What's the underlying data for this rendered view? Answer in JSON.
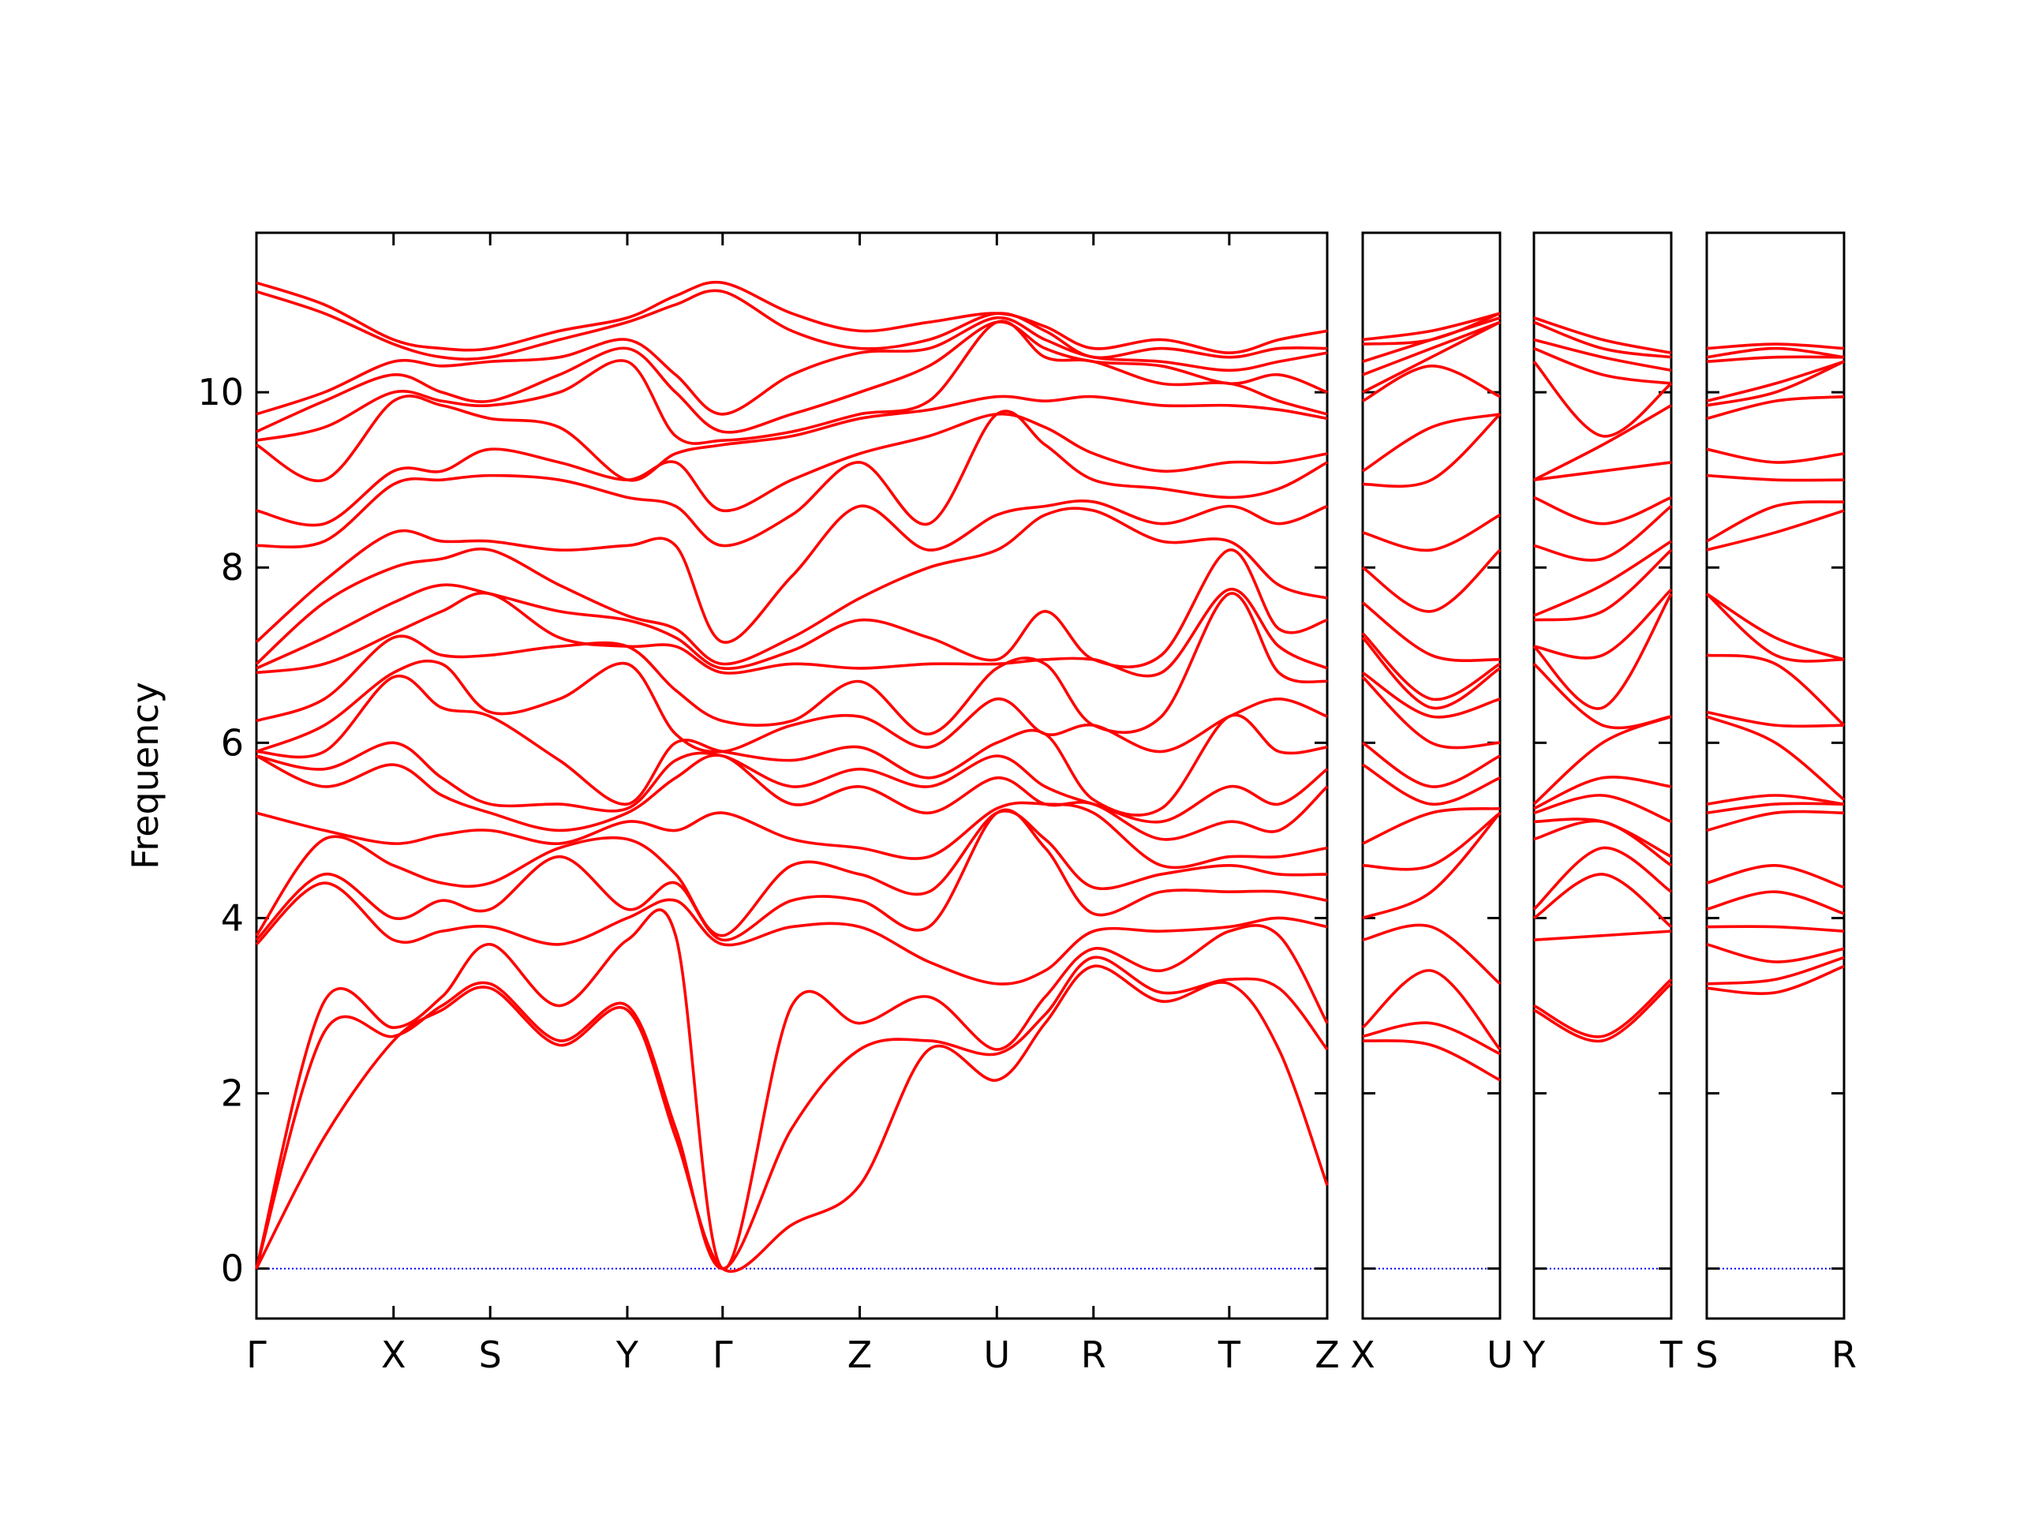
{
  "chart_data": [
    {
      "type": "line",
      "ylabel": "Frequency",
      "color": "#ff0000",
      "zero_line_color": "#0000ff",
      "ylim": [
        -0.57,
        11.82
      ],
      "yticks": [
        0,
        2,
        4,
        6,
        8,
        10
      ],
      "xlim": [
        0,
        8.2
      ],
      "xticks": [
        {
          "value": 0,
          "label": "Γ"
        },
        {
          "value": 1.05,
          "label": "X"
        },
        {
          "value": 1.79,
          "label": "S"
        },
        {
          "value": 2.84,
          "label": "Y"
        },
        {
          "value": 3.57,
          "label": "Γ"
        },
        {
          "value": 4.62,
          "label": "Z"
        },
        {
          "value": 5.67,
          "label": "U"
        },
        {
          "value": 6.41,
          "label": "R"
        },
        {
          "value": 7.45,
          "label": "T"
        },
        {
          "value": 8.2,
          "label": "Z"
        }
      ],
      "x": [
        0,
        0.52,
        1.05,
        1.42,
        1.79,
        2.32,
        2.84,
        3.21,
        3.57,
        4.1,
        4.62,
        5.15,
        5.67,
        6.04,
        6.41,
        6.93,
        7.45,
        7.83,
        8.2
      ],
      "series": [
        {
          "values": [
            0,
            1.5,
            2.6,
            2.95,
            3.2,
            2.55,
            2.95,
            1.5,
            0,
            0.5,
            0.95,
            2.5,
            2.15,
            2.8,
            3.45,
            3.05,
            3.25,
            2.5,
            0.95
          ]
        },
        {
          "values": [
            0,
            2.7,
            2.65,
            3.0,
            3.25,
            2.6,
            3.0,
            1.6,
            0,
            1.6,
            2.5,
            2.6,
            2.45,
            2.9,
            3.55,
            3.15,
            3.3,
            3.2,
            2.5
          ]
        },
        {
          "values": [
            0,
            3.05,
            2.75,
            3.1,
            3.7,
            3.0,
            3.75,
            3.8,
            0,
            3.0,
            2.8,
            3.1,
            2.5,
            3.1,
            3.65,
            3.4,
            3.85,
            3.8,
            2.8
          ]
        },
        {
          "values": [
            3.7,
            4.4,
            3.75,
            3.85,
            3.9,
            3.7,
            4.0,
            4.2,
            3.7,
            3.9,
            3.9,
            3.5,
            3.25,
            3.4,
            3.85,
            3.85,
            3.9,
            4.0,
            3.9
          ]
        },
        {
          "values": [
            3.75,
            4.5,
            4.0,
            4.2,
            4.1,
            4.7,
            4.1,
            4.4,
            3.75,
            4.2,
            4.2,
            3.9,
            5.2,
            4.8,
            4.05,
            4.3,
            4.3,
            4.3,
            4.2
          ]
        },
        {
          "values": [
            3.8,
            4.9,
            4.6,
            4.4,
            4.4,
            4.8,
            4.9,
            4.5,
            3.8,
            4.6,
            4.5,
            4.3,
            5.2,
            4.9,
            4.35,
            4.5,
            4.6,
            4.5,
            4.5
          ]
        },
        {
          "values": [
            5.2,
            5.0,
            4.85,
            4.95,
            5.0,
            4.85,
            5.1,
            5.0,
            5.2,
            4.9,
            4.8,
            4.7,
            5.25,
            5.3,
            5.2,
            4.6,
            4.7,
            4.7,
            4.8
          ]
        },
        {
          "values": [
            5.85,
            5.5,
            5.75,
            5.4,
            5.2,
            5.0,
            5.2,
            5.6,
            5.85,
            5.3,
            5.5,
            5.2,
            5.6,
            5.3,
            5.3,
            4.9,
            5.1,
            5.0,
            5.5
          ]
        },
        {
          "values": [
            5.85,
            5.7,
            6.0,
            5.6,
            5.3,
            5.3,
            5.25,
            5.8,
            5.85,
            5.5,
            5.7,
            5.5,
            5.85,
            5.5,
            5.3,
            5.1,
            5.5,
            5.3,
            5.7
          ]
        },
        {
          "values": [
            5.9,
            5.9,
            6.75,
            6.4,
            6.3,
            5.8,
            5.3,
            6.0,
            5.9,
            5.8,
            5.95,
            5.6,
            6.0,
            6.1,
            5.35,
            5.25,
            6.3,
            5.9,
            5.95
          ]
        },
        {
          "values": [
            5.9,
            6.2,
            6.8,
            6.9,
            6.35,
            6.5,
            6.9,
            6.1,
            5.9,
            6.2,
            6.3,
            5.95,
            6.5,
            6.1,
            6.2,
            5.9,
            6.3,
            6.5,
            6.3
          ]
        },
        {
          "values": [
            6.25,
            6.5,
            7.2,
            7.0,
            7.0,
            7.1,
            7.1,
            6.6,
            6.25,
            6.25,
            6.7,
            6.1,
            6.85,
            6.9,
            6.2,
            6.3,
            7.7,
            6.8,
            6.7
          ]
        },
        {
          "values": [
            6.8,
            6.9,
            7.25,
            7.5,
            7.7,
            7.2,
            7.1,
            7.1,
            6.8,
            6.9,
            6.85,
            6.9,
            6.9,
            6.95,
            6.95,
            6.8,
            7.75,
            7.1,
            6.85
          ]
        },
        {
          "values": [
            6.85,
            7.2,
            7.6,
            7.8,
            7.7,
            7.5,
            7.4,
            7.2,
            6.85,
            7.05,
            7.4,
            7.2,
            6.95,
            7.5,
            6.95,
            7.0,
            8.2,
            7.3,
            7.4
          ]
        },
        {
          "values": [
            6.9,
            7.6,
            8.0,
            8.1,
            8.2,
            7.8,
            7.45,
            7.3,
            6.9,
            7.2,
            7.65,
            8.0,
            8.2,
            8.6,
            8.65,
            8.3,
            8.3,
            7.8,
            7.65
          ]
        },
        {
          "values": [
            7.15,
            7.85,
            8.4,
            8.3,
            8.3,
            8.2,
            8.25,
            8.25,
            7.15,
            7.9,
            8.7,
            8.2,
            8.6,
            8.7,
            8.75,
            8.5,
            8.7,
            8.5,
            8.7
          ]
        },
        {
          "values": [
            8.25,
            8.3,
            8.95,
            9.0,
            9.05,
            9.0,
            8.8,
            8.7,
            8.25,
            8.6,
            9.2,
            8.5,
            9.75,
            9.4,
            9.0,
            8.9,
            8.8,
            8.9,
            9.2
          ]
        },
        {
          "values": [
            8.65,
            8.5,
            9.1,
            9.1,
            9.35,
            9.2,
            9.0,
            9.2,
            8.65,
            9.0,
            9.3,
            9.5,
            9.75,
            9.6,
            9.3,
            9.1,
            9.2,
            9.2,
            9.3
          ]
        },
        {
          "values": [
            9.4,
            9.0,
            9.9,
            9.85,
            9.7,
            9.6,
            9.0,
            9.3,
            9.4,
            9.5,
            9.7,
            9.8,
            9.95,
            9.9,
            9.95,
            9.85,
            9.85,
            9.8,
            9.7
          ]
        },
        {
          "values": [
            9.45,
            9.6,
            10.0,
            9.9,
            9.85,
            10.0,
            10.35,
            9.5,
            9.45,
            9.55,
            9.75,
            9.9,
            10.8,
            10.4,
            10.35,
            10.1,
            10.1,
            9.9,
            9.75
          ]
        },
        {
          "values": [
            9.55,
            9.9,
            10.2,
            10.0,
            9.9,
            10.2,
            10.5,
            10.0,
            9.55,
            9.75,
            10.0,
            10.3,
            10.8,
            10.5,
            10.35,
            10.3,
            10.1,
            10.2,
            10.0
          ]
        },
        {
          "values": [
            9.75,
            10.0,
            10.35,
            10.3,
            10.35,
            10.4,
            10.6,
            10.2,
            9.75,
            10.2,
            10.45,
            10.5,
            10.85,
            10.6,
            10.4,
            10.35,
            10.25,
            10.35,
            10.45
          ]
        },
        {
          "values": [
            11.15,
            10.9,
            10.55,
            10.4,
            10.4,
            10.6,
            10.8,
            11.0,
            11.15,
            10.7,
            10.5,
            10.6,
            10.9,
            10.7,
            10.4,
            10.5,
            10.4,
            10.5,
            10.5
          ]
        },
        {
          "values": [
            11.25,
            11.0,
            10.6,
            10.5,
            10.5,
            10.7,
            10.85,
            11.1,
            11.25,
            10.9,
            10.7,
            10.8,
            10.9,
            10.75,
            10.5,
            10.6,
            10.45,
            10.6,
            10.7
          ]
        }
      ]
    },
    {
      "type": "line",
      "color": "#ff0000",
      "zero_line_color": "#0000ff",
      "ylim": [
        -0.57,
        11.82
      ],
      "yticks": [
        0,
        2,
        4,
        6,
        8,
        10
      ],
      "xlim": [
        0,
        1.05
      ],
      "xticks": [
        {
          "value": 0,
          "label": "X"
        },
        {
          "value": 1.05,
          "label": "U"
        }
      ],
      "x": [
        0,
        0.525,
        1.05
      ],
      "series": [
        {
          "values": [
            2.6,
            2.55,
            2.15
          ]
        },
        {
          "values": [
            2.65,
            2.8,
            2.45
          ]
        },
        {
          "values": [
            2.75,
            3.4,
            2.5
          ]
        },
        {
          "values": [
            3.75,
            3.9,
            3.25
          ]
        },
        {
          "values": [
            4.0,
            4.3,
            5.2
          ]
        },
        {
          "values": [
            4.6,
            4.6,
            5.2
          ]
        },
        {
          "values": [
            4.85,
            5.2,
            5.25
          ]
        },
        {
          "values": [
            5.75,
            5.3,
            5.6
          ]
        },
        {
          "values": [
            6.0,
            5.5,
            5.85
          ]
        },
        {
          "values": [
            6.75,
            6.0,
            6.0
          ]
        },
        {
          "values": [
            6.8,
            6.3,
            6.5
          ]
        },
        {
          "values": [
            7.2,
            6.4,
            6.85
          ]
        },
        {
          "values": [
            7.25,
            6.5,
            6.9
          ]
        },
        {
          "values": [
            7.6,
            7.0,
            6.95
          ]
        },
        {
          "values": [
            8.0,
            7.5,
            8.2
          ]
        },
        {
          "values": [
            8.4,
            8.2,
            8.6
          ]
        },
        {
          "values": [
            8.95,
            9.0,
            9.75
          ]
        },
        {
          "values": [
            9.1,
            9.6,
            9.75
          ]
        },
        {
          "values": [
            9.9,
            10.3,
            9.95
          ]
        },
        {
          "values": [
            10.0,
            10.4,
            10.8
          ]
        },
        {
          "values": [
            10.2,
            10.5,
            10.8
          ]
        },
        {
          "values": [
            10.35,
            10.6,
            10.85
          ]
        },
        {
          "values": [
            10.55,
            10.6,
            10.9
          ]
        },
        {
          "values": [
            10.6,
            10.7,
            10.9
          ]
        }
      ]
    },
    {
      "type": "line",
      "color": "#ff0000",
      "zero_line_color": "#0000ff",
      "ylim": [
        -0.57,
        11.82
      ],
      "yticks": [
        0,
        2,
        4,
        6,
        8,
        10
      ],
      "xlim": [
        0,
        1.05
      ],
      "xticks": [
        {
          "value": 0,
          "label": "Y"
        },
        {
          "value": 1.05,
          "label": "T"
        }
      ],
      "x": [
        0,
        0.525,
        1.05
      ],
      "series": [
        {
          "values": [
            2.95,
            2.6,
            3.25
          ]
        },
        {
          "values": [
            3.0,
            2.65,
            3.3
          ]
        },
        {
          "values": [
            3.75,
            3.8,
            3.85
          ]
        },
        {
          "values": [
            4.0,
            4.5,
            3.9
          ]
        },
        {
          "values": [
            4.1,
            4.8,
            4.3
          ]
        },
        {
          "values": [
            4.9,
            5.1,
            4.6
          ]
        },
        {
          "values": [
            5.1,
            5.1,
            4.7
          ]
        },
        {
          "values": [
            5.2,
            5.4,
            5.1
          ]
        },
        {
          "values": [
            5.25,
            5.6,
            5.5
          ]
        },
        {
          "values": [
            5.3,
            6.0,
            6.3
          ]
        },
        {
          "values": [
            6.9,
            6.2,
            6.3
          ]
        },
        {
          "values": [
            7.1,
            6.4,
            7.7
          ]
        },
        {
          "values": [
            7.1,
            7.0,
            7.75
          ]
        },
        {
          "values": [
            7.4,
            7.5,
            8.2
          ]
        },
        {
          "values": [
            7.45,
            7.8,
            8.3
          ]
        },
        {
          "values": [
            8.25,
            8.1,
            8.7
          ]
        },
        {
          "values": [
            8.8,
            8.5,
            8.8
          ]
        },
        {
          "values": [
            9.0,
            9.1,
            9.2
          ]
        },
        {
          "values": [
            9.0,
            9.4,
            9.85
          ]
        },
        {
          "values": [
            10.35,
            9.5,
            10.1
          ]
        },
        {
          "values": [
            10.5,
            10.2,
            10.1
          ]
        },
        {
          "values": [
            10.6,
            10.4,
            10.25
          ]
        },
        {
          "values": [
            10.8,
            10.5,
            10.4
          ]
        },
        {
          "values": [
            10.85,
            10.6,
            10.45
          ]
        }
      ]
    },
    {
      "type": "line",
      "color": "#ff0000",
      "zero_line_color": "#0000ff",
      "ylim": [
        -0.57,
        11.82
      ],
      "yticks": [
        0,
        2,
        4,
        6,
        8,
        10
      ],
      "xlim": [
        0,
        1.05
      ],
      "xticks": [
        {
          "value": 0,
          "label": "S"
        },
        {
          "value": 1.05,
          "label": "R"
        }
      ],
      "x": [
        0,
        0.525,
        1.05
      ],
      "series": [
        {
          "values": [
            3.2,
            3.15,
            3.45
          ]
        },
        {
          "values": [
            3.25,
            3.3,
            3.55
          ]
        },
        {
          "values": [
            3.7,
            3.5,
            3.65
          ]
        },
        {
          "values": [
            3.9,
            3.9,
            3.85
          ]
        },
        {
          "values": [
            4.1,
            4.3,
            4.05
          ]
        },
        {
          "values": [
            4.4,
            4.6,
            4.35
          ]
        },
        {
          "values": [
            5.0,
            5.2,
            5.2
          ]
        },
        {
          "values": [
            5.2,
            5.3,
            5.3
          ]
        },
        {
          "values": [
            5.3,
            5.4,
            5.3
          ]
        },
        {
          "values": [
            6.3,
            6.0,
            5.35
          ]
        },
        {
          "values": [
            6.35,
            6.2,
            6.2
          ]
        },
        {
          "values": [
            7.0,
            6.9,
            6.2
          ]
        },
        {
          "values": [
            7.7,
            7.0,
            6.95
          ]
        },
        {
          "values": [
            7.7,
            7.2,
            6.95
          ]
        },
        {
          "values": [
            8.2,
            8.4,
            8.65
          ]
        },
        {
          "values": [
            8.3,
            8.7,
            8.75
          ]
        },
        {
          "values": [
            9.05,
            9.0,
            9.0
          ]
        },
        {
          "values": [
            9.35,
            9.2,
            9.3
          ]
        },
        {
          "values": [
            9.7,
            9.9,
            9.95
          ]
        },
        {
          "values": [
            9.85,
            10.0,
            10.35
          ]
        },
        {
          "values": [
            9.9,
            10.1,
            10.35
          ]
        },
        {
          "values": [
            10.35,
            10.4,
            10.4
          ]
        },
        {
          "values": [
            10.4,
            10.5,
            10.4
          ]
        },
        {
          "values": [
            10.5,
            10.55,
            10.5
          ]
        }
      ]
    }
  ]
}
